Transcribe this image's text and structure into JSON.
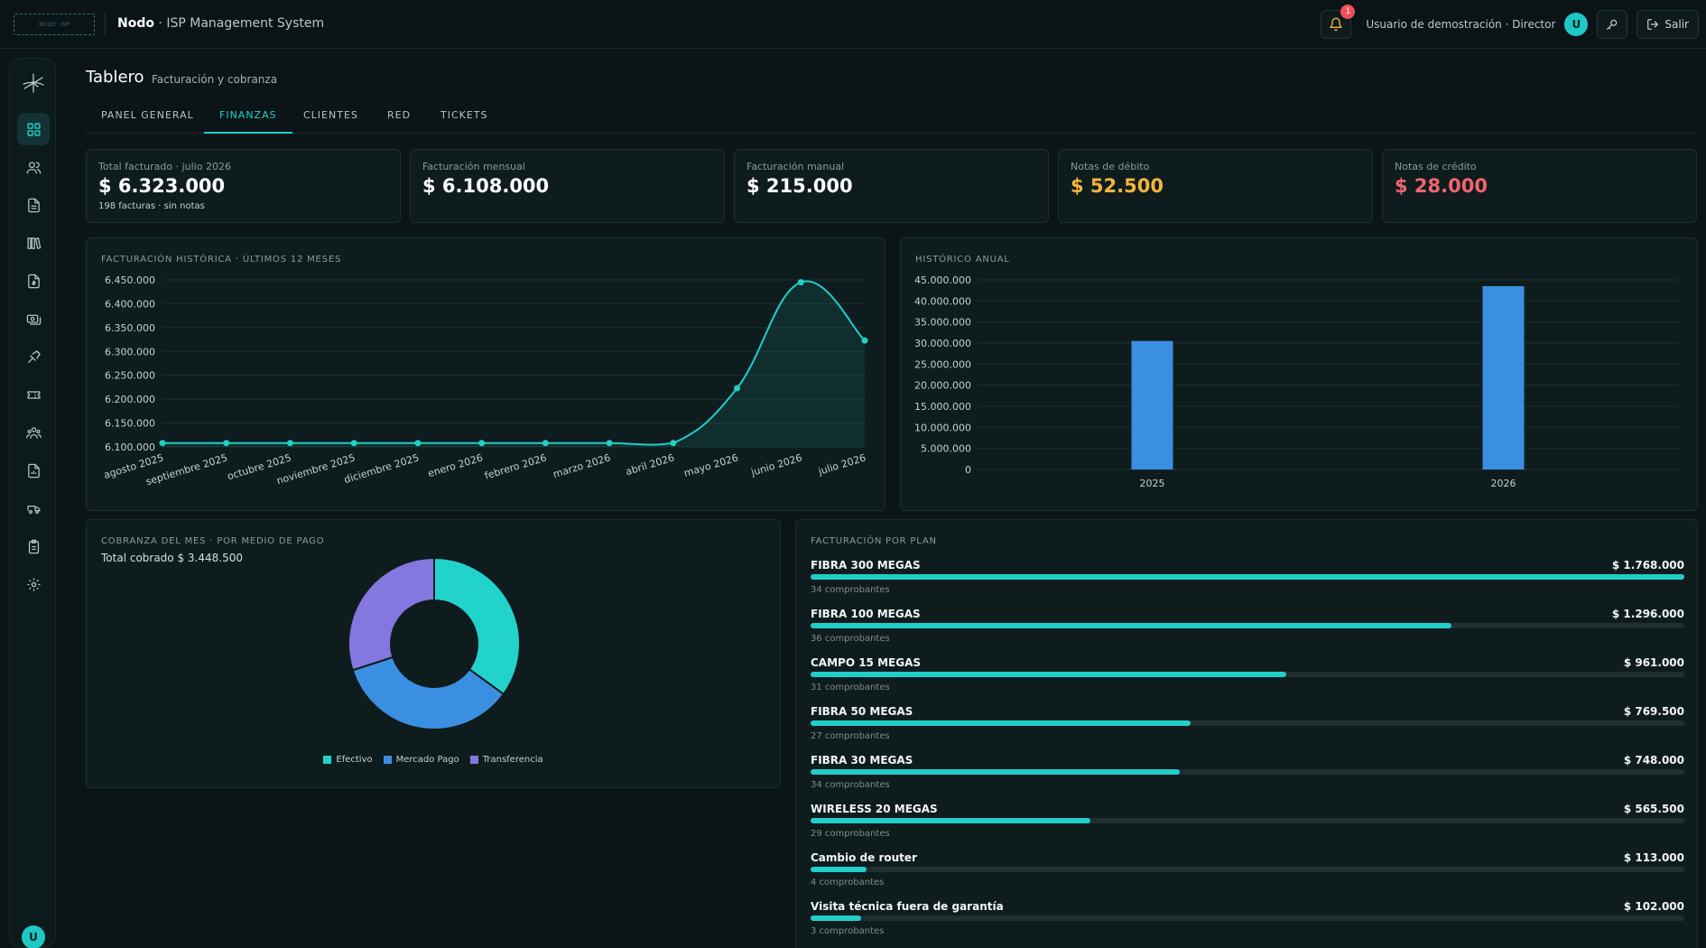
{
  "topbar": {
    "logo_text": "NODO · ISP",
    "brand": "Nodo",
    "app_name": " · ISP Management System",
    "notification_count": "1",
    "user_label": "Usuario de demostración · Director",
    "avatar_initial": "U",
    "logout_label": "Salir"
  },
  "sidebar": {
    "items": [
      {
        "icon": "dashboard-icon",
        "active": true
      },
      {
        "icon": "users-icon"
      },
      {
        "icon": "document-icon"
      },
      {
        "icon": "library-icon"
      },
      {
        "icon": "invoice-icon"
      },
      {
        "icon": "payments-icon"
      },
      {
        "icon": "satellite-icon"
      },
      {
        "icon": "ticket-icon"
      },
      {
        "icon": "team-icon"
      },
      {
        "icon": "report-icon"
      },
      {
        "icon": "truck-icon"
      },
      {
        "icon": "clipboard-icon"
      },
      {
        "icon": "gear-icon"
      }
    ],
    "avatar_initial": "U"
  },
  "header": {
    "title": "Tablero",
    "subtitle": "Facturación y cobranza"
  },
  "tabs": [
    {
      "label": "PANEL GENERAL",
      "active": false
    },
    {
      "label": "FINANZAS",
      "active": true
    },
    {
      "label": "CLIENTES",
      "active": false
    },
    {
      "label": "RED",
      "active": false
    },
    {
      "label": "TICKETS",
      "active": false
    }
  ],
  "stats": [
    {
      "label": "Total facturado · julio 2026",
      "value": "$ 6.323.000",
      "sub": "198 facturas · sin notas",
      "color": "#ffffff"
    },
    {
      "label": "Facturación mensual",
      "value": "$ 6.108.000",
      "sub": "",
      "color": "#ffffff"
    },
    {
      "label": "Facturación manual",
      "value": "$ 215.000",
      "sub": "",
      "color": "#ffffff"
    },
    {
      "label": "Notas de débito",
      "value": "$ 52.500",
      "sub": "",
      "color": "#f5b53a"
    },
    {
      "label": "Notas de crédito",
      "value": "$ 28.000",
      "sub": "",
      "color": "#f0656d"
    }
  ],
  "panels": {
    "history_title": "FACTURACIÓN HISTÓRICA · ÚLTIMOS 12 MESES",
    "annual_title": "HISTÓRICO ANUAL",
    "collection_title": "COBRANZA DEL MES · POR MEDIO DE PAGO",
    "collection_total": "Total cobrado $ 3.448.500",
    "plans_title": "FACTURACIÓN POR PLAN"
  },
  "chart_data": [
    {
      "type": "line",
      "title": "FACTURACIÓN HISTÓRICA · ÚLTIMOS 12 MESES",
      "categories": [
        "agosto 2025",
        "septiembre 2025",
        "octubre 2025",
        "noviembre 2025",
        "diciembre 2025",
        "enero 2026",
        "febrero 2026",
        "marzo 2026",
        "abril 2026",
        "mayo 2026",
        "junio 2026",
        "julio 2026"
      ],
      "values": [
        6108000,
        6108000,
        6108000,
        6108000,
        6108000,
        6108000,
        6108000,
        6108000,
        6108000,
        6223000,
        6445000,
        6323000
      ],
      "ylim": [
        6100000,
        6450000
      ],
      "yticks": [
        "6.100.000",
        "6.150.000",
        "6.200.000",
        "6.250.000",
        "6.300.000",
        "6.350.000",
        "6.400.000",
        "6.450.000"
      ],
      "color": "#22cec8",
      "grid": true
    },
    {
      "type": "bar",
      "title": "HISTÓRICO ANUAL",
      "categories": [
        "2025",
        "2026"
      ],
      "values": [
        30500000,
        43500000
      ],
      "ylim": [
        0,
        45000000
      ],
      "yticks": [
        "0",
        "5.000.000",
        "10.000.000",
        "15.000.000",
        "20.000.000",
        "25.000.000",
        "30.000.000",
        "35.000.000",
        "40.000.000",
        "45.000.000"
      ],
      "color": "#3b8fe0",
      "grid": true
    },
    {
      "type": "pie",
      "title": "COBRANZA DEL MES · POR MEDIO DE PAGO",
      "categories": [
        "Efectivo",
        "Mercado Pago",
        "Transferencia"
      ],
      "values": [
        35,
        35,
        30
      ],
      "colors": [
        "#22d3cc",
        "#3b8fe0",
        "#8477e0"
      ],
      "legend": "bottom"
    }
  ],
  "plans": [
    {
      "name": "FIBRA 300 MEGAS",
      "amount": "$ 1.768.000",
      "count": "34 comprobantes",
      "fraction": 1.0
    },
    {
      "name": "FIBRA 100 MEGAS",
      "amount": "$ 1.296.000",
      "count": "36 comprobantes",
      "fraction": 0.733
    },
    {
      "name": "CAMPO 15 MEGAS",
      "amount": "$ 961.000",
      "count": "31 comprobantes",
      "fraction": 0.544
    },
    {
      "name": "FIBRA 50 MEGAS",
      "amount": "$ 769.500",
      "count": "27 comprobantes",
      "fraction": 0.435
    },
    {
      "name": "FIBRA 30 MEGAS",
      "amount": "$ 748.000",
      "count": "34 comprobantes",
      "fraction": 0.423
    },
    {
      "name": "WIRELESS 20 MEGAS",
      "amount": "$ 565.500",
      "count": "29 comprobantes",
      "fraction": 0.32
    },
    {
      "name": "Cambio de router",
      "amount": "$ 113.000",
      "count": "4 comprobantes",
      "fraction": 0.064
    },
    {
      "name": "Visita técnica fuera de garantía",
      "amount": "$ 102.000",
      "count": "3 comprobantes",
      "fraction": 0.058
    }
  ]
}
